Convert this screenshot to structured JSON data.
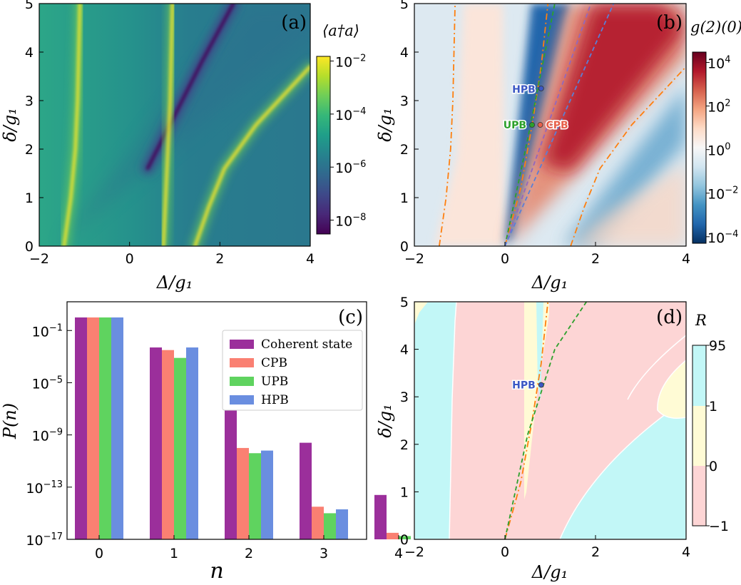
{
  "colors": {
    "viridis": [
      "#440154",
      "#482878",
      "#3e4989",
      "#31688e",
      "#26828e",
      "#1f9e89",
      "#35b779",
      "#6ece58",
      "#b5de2b",
      "#fde725"
    ],
    "rdbu": [
      "#053061",
      "#2166ac",
      "#4393c3",
      "#92c5de",
      "#d1e5f0",
      "#f7f7f7",
      "#fddbc7",
      "#f4a582",
      "#d6604d",
      "#b2182b",
      "#67001f"
    ],
    "orange_curve": "#ff7f0e",
    "green_curve": "#2ca02c",
    "purple_curve": "#9467bd",
    "blue_curve": "#5b7fd6",
    "region_cyan": "#c2f7f7",
    "region_yellow": "#fffbd5",
    "region_pink": "#fdd5d5",
    "bar_coherent": "#9b2f9b",
    "bar_cpb": "#fa8072",
    "bar_upb": "#5fd35f",
    "bar_hpb": "#6a8ee0"
  },
  "chart_data": [
    {
      "panel": "(a)",
      "type": "heatmap",
      "xlabel": "Δ/g₁",
      "ylabel": "δ/g₁",
      "xlim": [
        -2,
        4
      ],
      "ylim": [
        0,
        5
      ],
      "xticks": [
        "−2",
        "0",
        "2",
        "4"
      ],
      "yticks": [
        "0",
        "1",
        "2",
        "3",
        "4",
        "5"
      ],
      "colorbar": {
        "title": "⟨a†a⟩",
        "scale": "log",
        "range": [
          3e-09,
          0.015
        ],
        "ticks": [
          {
            "base": "10",
            "exp": "−2",
            "value": 0.01
          },
          {
            "base": "10",
            "exp": "−4",
            "value": 0.0001
          },
          {
            "base": "10",
            "exp": "−6",
            "value": 1e-06
          },
          {
            "base": "10",
            "exp": "−8",
            "value": 1e-08
          }
        ]
      },
      "resonance_ridges": [
        {
          "x": [
            -1.45,
            -1.3,
            -1.2,
            -1.15,
            -1.1
          ],
          "y": [
            0,
            1,
            2,
            3,
            5
          ]
        },
        {
          "x": [
            0.75,
            0.8,
            0.85,
            0.9,
            0.95
          ],
          "y": [
            0,
            1,
            2,
            3,
            5
          ]
        },
        {
          "x": [
            1.45,
            1.75,
            2.1,
            2.8,
            4.0
          ],
          "y": [
            0,
            0.8,
            1.6,
            2.5,
            3.7
          ]
        }
      ],
      "dark_valley": {
        "x": [
          0.4,
          1.0,
          1.6,
          2.3
        ],
        "y": [
          1.6,
          2.7,
          3.8,
          5.0
        ]
      }
    },
    {
      "panel": "(b)",
      "type": "heatmap",
      "xlabel": "Δ/g₁",
      "ylabel": "δ/g₁",
      "xlim": [
        -2,
        4
      ],
      "ylim": [
        0,
        5
      ],
      "xticks": [
        "−2",
        "0",
        "2",
        "4"
      ],
      "yticks": [
        "0",
        "1",
        "2",
        "3",
        "4",
        "5"
      ],
      "colorbar": {
        "title": "g(2)(0)",
        "scale": "log",
        "range": [
          5e-05,
          30000.0
        ],
        "ticks": [
          {
            "base": "10",
            "exp": "4",
            "value": 10000.0
          },
          {
            "base": "10",
            "exp": "2",
            "value": 100.0
          },
          {
            "base": "10",
            "exp": "0",
            "value": 1
          },
          {
            "base": "10",
            "exp": "−2",
            "value": 0.01
          },
          {
            "base": "10",
            "exp": "−4",
            "value": 0.0001
          }
        ]
      },
      "markers": [
        {
          "label": "HPB",
          "x": 0.8,
          "y": 3.25
        },
        {
          "label": "UPB",
          "x": 0.6,
          "y": 2.5
        },
        {
          "label": "CPB",
          "x": 0.78,
          "y": 2.5
        }
      ],
      "curves": [
        {
          "style": "dash-dot",
          "color": "orange",
          "x": [
            -1.45,
            -1.3,
            -1.2,
            -1.15,
            -1.1
          ],
          "y": [
            0,
            1,
            2,
            3,
            5
          ]
        },
        {
          "style": "dash-dot",
          "color": "orange",
          "x": [
            0,
            0.35,
            0.6,
            0.8,
            0.95
          ],
          "y": [
            0,
            1.2,
            2.5,
            3.7,
            5
          ]
        },
        {
          "style": "dash-dot",
          "color": "orange",
          "x": [
            1.45,
            1.75,
            2.1,
            2.8,
            4.0
          ],
          "y": [
            0,
            0.8,
            1.6,
            2.5,
            3.7
          ]
        },
        {
          "style": "dash",
          "color": "green",
          "x": [
            0,
            0.5,
            1.1
          ],
          "y": [
            0,
            2.2,
            5
          ]
        },
        {
          "style": "dash",
          "color": "purple",
          "x": [
            0,
            1.9
          ],
          "y": [
            0,
            5
          ]
        },
        {
          "style": "dash",
          "color": "blue",
          "x": [
            0,
            2.4
          ],
          "y": [
            0,
            5
          ]
        }
      ]
    },
    {
      "panel": "(c)",
      "type": "bar",
      "xlabel": "n",
      "ylabel": "P(n)",
      "yscale": "log",
      "ylim_exp": [
        -17,
        1.2
      ],
      "categories": [
        "0",
        "1",
        "2",
        "3",
        "4"
      ],
      "yticks": [
        {
          "base": "10",
          "exp": "−1",
          "value_exp": -1
        },
        {
          "base": "10",
          "exp": "−5",
          "value_exp": -5
        },
        {
          "base": "10",
          "exp": "−9",
          "value_exp": -9
        },
        {
          "base": "10",
          "exp": "−13",
          "value_exp": -13
        },
        {
          "base": "10",
          "exp": "−17",
          "value_exp": -17
        }
      ],
      "legend_position": "upper-right",
      "series": [
        {
          "name": "Coherent state",
          "log10_values": [
            0.0,
            -2.3,
            -5.8,
            -9.6,
            -13.6
          ]
        },
        {
          "name": "CPB",
          "log10_values": [
            0.0,
            -2.5,
            -10.0,
            -14.5,
            -16.5
          ]
        },
        {
          "name": "UPB",
          "log10_values": [
            0.0,
            -3.1,
            -10.4,
            -15.0,
            -16.75
          ]
        },
        {
          "name": "HPB",
          "log10_values": [
            0.0,
            -2.3,
            -10.2,
            -14.7,
            -17.0
          ]
        }
      ]
    },
    {
      "panel": "(d)",
      "type": "heatmap",
      "xlabel": "Δ/g₁",
      "ylabel": "δ/g₁",
      "xlim": [
        -2,
        4
      ],
      "ylim": [
        0,
        5
      ],
      "xticks": [
        "−2",
        "0",
        "2",
        "4"
      ],
      "yticks": [
        "0",
        "1",
        "2",
        "3",
        "4",
        "5"
      ],
      "colorbar": {
        "title": "R",
        "scale": "categorical",
        "ticks": [
          "95",
          "1",
          "0",
          "−1"
        ]
      },
      "markers": [
        {
          "label": "HPB",
          "x": 0.8,
          "y": 3.25
        }
      ],
      "curves": [
        {
          "style": "dash-dot",
          "color": "orange",
          "x": [
            0,
            0.35,
            0.6,
            0.8,
            0.95
          ],
          "y": [
            0,
            1.2,
            2.5,
            3.7,
            5
          ]
        },
        {
          "style": "dash",
          "color": "green",
          "x": [
            0,
            0.5,
            1.1,
            1.8
          ],
          "y": [
            0,
            2.2,
            4.0,
            5
          ]
        }
      ]
    }
  ]
}
